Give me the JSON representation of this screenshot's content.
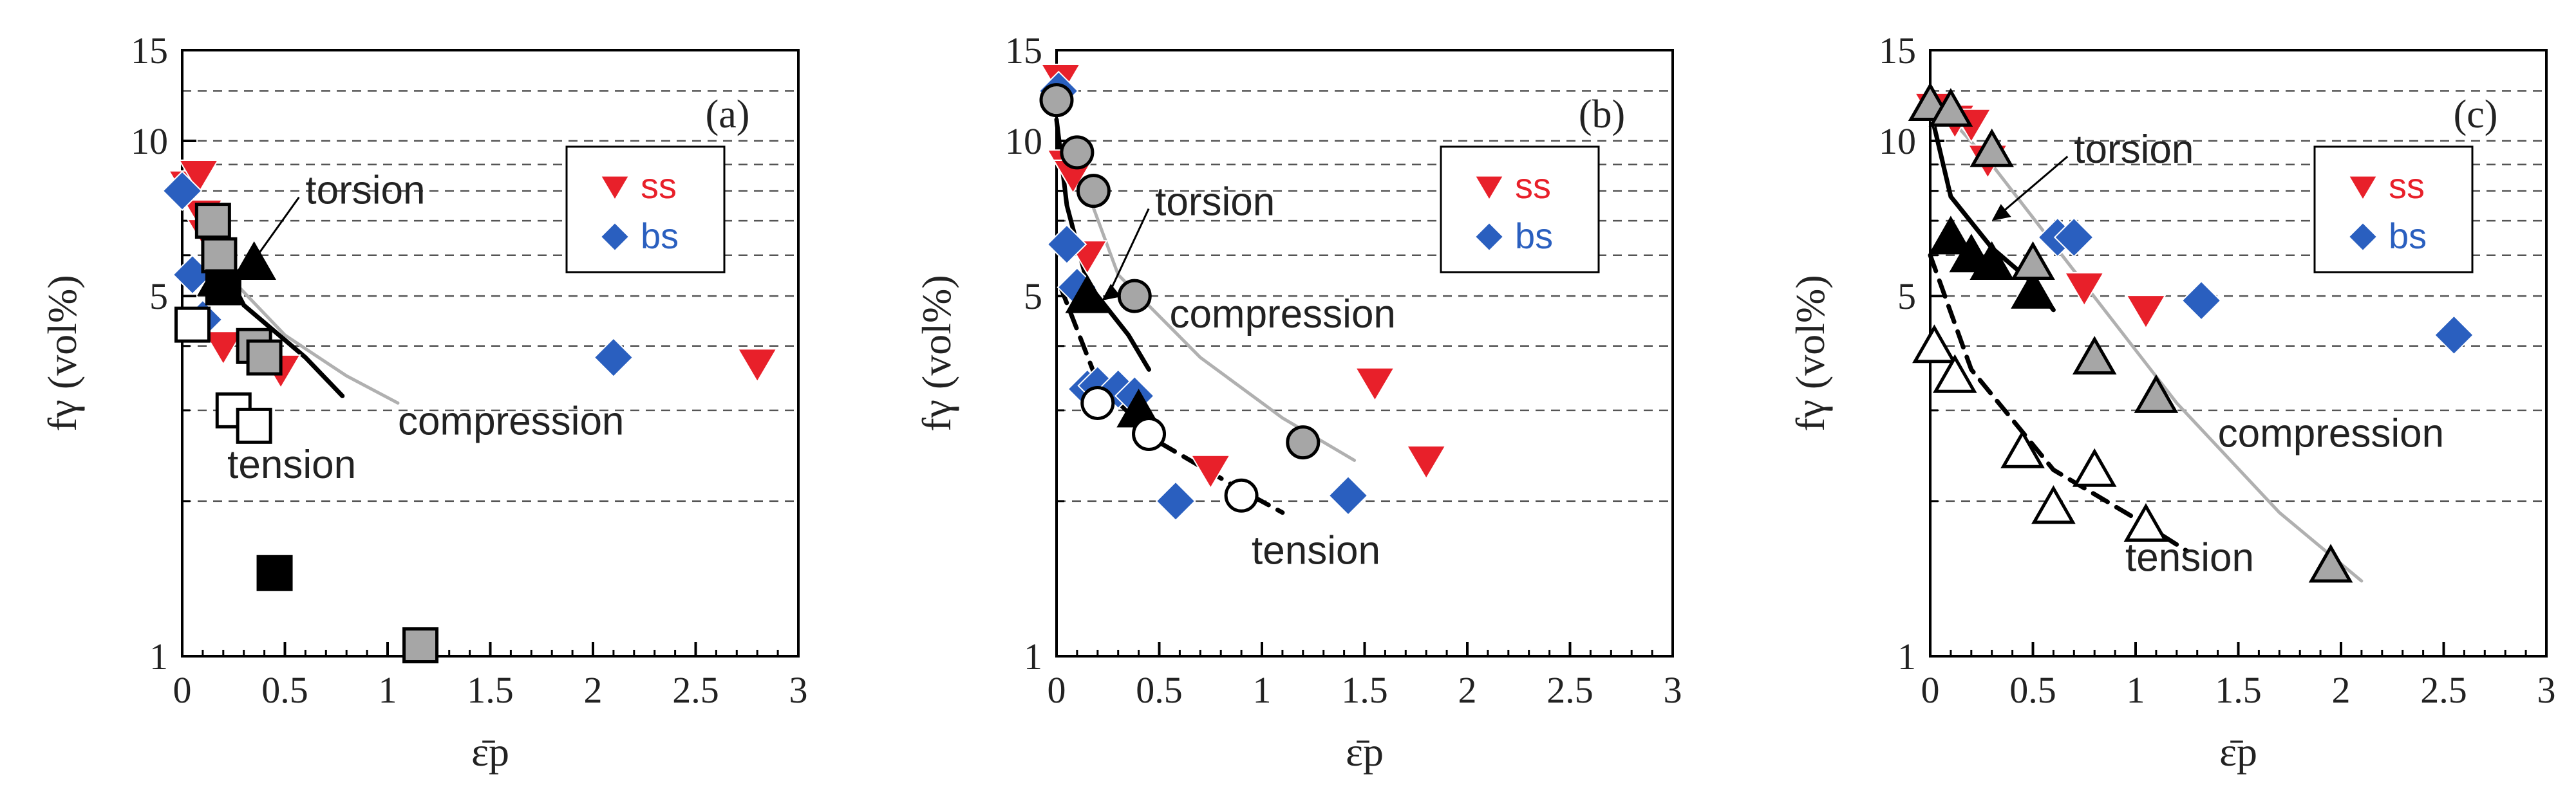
{
  "colors": {
    "ss": "#e8202a",
    "bs": "#2a5fbf",
    "gray_fill": "#a6a6a6",
    "black": "#000000",
    "fit_gray": "#b0b0b0",
    "grid": "#555555"
  },
  "chart_data": [
    {
      "type": "scatter",
      "panel": "(a)",
      "xlabel": "ε̄p",
      "ylabel": "fγ (vol%)",
      "xlim": [
        0,
        3
      ],
      "ylim": [
        1,
        15
      ],
      "yscale": "log",
      "xticks": [
        "0",
        "0.5",
        "1",
        "1.5",
        "2",
        "2.5",
        "3"
      ],
      "yticks": [
        "1",
        "5",
        "10",
        "15"
      ],
      "legend": [
        {
          "label": "ss",
          "marker": "tri-down",
          "color": "ss"
        },
        {
          "label": "bs",
          "marker": "diamond",
          "color": "bs"
        }
      ],
      "legend_position": "top-right",
      "series": [
        {
          "name": "ss",
          "marker": "tri-down",
          "color": "ss",
          "points": [
            [
              0.03,
              8.2
            ],
            [
              0.08,
              8.6
            ],
            [
              0.1,
              7.2
            ],
            [
              0.12,
              6.6
            ],
            [
              0.2,
              4.0
            ],
            [
              0.48,
              3.6
            ],
            [
              2.8,
              3.7
            ]
          ]
        },
        {
          "name": "bs",
          "marker": "diamond",
          "color": "bs",
          "points": [
            [
              0.0,
              8.0
            ],
            [
              0.05,
              5.5
            ],
            [
              0.1,
              4.5
            ],
            [
              2.1,
              3.8
            ]
          ]
        },
        {
          "name": "torsion",
          "marker": "tri-up",
          "fill": "black",
          "points": [
            [
              0.18,
              5.4
            ],
            [
              0.35,
              5.8
            ]
          ]
        },
        {
          "name": "compression",
          "marker": "square",
          "fill": "gray_fill",
          "points": [
            [
              0.15,
              7.0
            ],
            [
              0.18,
              6.0
            ],
            [
              0.35,
              4.0
            ],
            [
              0.4,
              3.8
            ],
            [
              1.16,
              1.05
            ]
          ]
        },
        {
          "name": "tension",
          "marker": "square",
          "fill": "none",
          "points": [
            [
              0.05,
              4.4
            ],
            [
              0.25,
              3.0
            ],
            [
              0.35,
              2.8
            ]
          ]
        },
        {
          "name": "black-square",
          "marker": "square",
          "fill": "black",
          "points": [
            [
              0.2,
              5.2
            ],
            [
              0.45,
              1.45
            ]
          ]
        }
      ],
      "fits": [
        {
          "name": "torsion",
          "style": "solid",
          "color": "black",
          "points": [
            [
              0.05,
              7.5
            ],
            [
              0.3,
              4.8
            ],
            [
              0.6,
              3.8
            ],
            [
              0.78,
              3.2
            ]
          ]
        },
        {
          "name": "compression",
          "style": "solid",
          "color": "fit_gray",
          "points": [
            [
              0.2,
              5.6
            ],
            [
              0.5,
              4.2
            ],
            [
              0.8,
              3.5
            ],
            [
              1.05,
              3.1
            ]
          ]
        }
      ],
      "annotations": [
        {
          "text": "torsion",
          "x": 0.6,
          "y": 8.0,
          "arrow_to": [
            0.3,
            5.6
          ]
        },
        {
          "text": "compression",
          "x": 1.05,
          "y": 2.85
        },
        {
          "text": "tension",
          "x": 0.22,
          "y": 2.35
        }
      ]
    },
    {
      "type": "scatter",
      "panel": "(b)",
      "xlabel": "ε̄p",
      "ylabel": "fγ (vol%)",
      "xlim": [
        0,
        3
      ],
      "ylim": [
        1,
        15
      ],
      "yscale": "log",
      "xticks": [
        "0",
        "0.5",
        "1",
        "1.5",
        "2",
        "2.5",
        "3"
      ],
      "yticks": [
        "1",
        "5",
        "10",
        "15"
      ],
      "legend": [
        {
          "label": "ss",
          "marker": "tri-down",
          "color": "ss"
        },
        {
          "label": "bs",
          "marker": "diamond",
          "color": "bs"
        }
      ],
      "legend_position": "top-right",
      "series": [
        {
          "name": "ss",
          "marker": "tri-down",
          "color": "ss",
          "points": [
            [
              0.02,
              13.2
            ],
            [
              0.05,
              9.0
            ],
            [
              0.08,
              8.6
            ],
            [
              0.15,
              6.0
            ],
            [
              0.75,
              2.3
            ],
            [
              1.55,
              3.4
            ],
            [
              1.8,
              2.4
            ]
          ]
        },
        {
          "name": "bs",
          "marker": "diamond",
          "color": "bs",
          "points": [
            [
              0.01,
              12.5
            ],
            [
              0.05,
              6.3
            ],
            [
              0.1,
              5.2
            ],
            [
              0.15,
              3.3
            ],
            [
              0.2,
              3.35
            ],
            [
              0.3,
              3.3
            ],
            [
              0.38,
              3.2
            ],
            [
              0.58,
              2.0
            ],
            [
              1.42,
              2.05
            ]
          ]
        },
        {
          "name": "torsion",
          "marker": "tri-up",
          "fill": "black",
          "points": [
            [
              0.15,
              5.0
            ],
            [
              0.4,
              3.0
            ]
          ]
        },
        {
          "name": "compression",
          "marker": "circle",
          "fill": "gray_fill",
          "points": [
            [
              0.0,
              12.0
            ],
            [
              0.1,
              9.5
            ],
            [
              0.18,
              8.0
            ],
            [
              0.38,
              5.0
            ],
            [
              1.2,
              2.6
            ]
          ]
        },
        {
          "name": "tension",
          "marker": "circle",
          "fill": "none",
          "points": [
            [
              0.2,
              3.1
            ],
            [
              0.45,
              2.7
            ],
            [
              0.9,
              2.05
            ]
          ]
        }
      ],
      "fits": [
        {
          "name": "torsion",
          "style": "solid",
          "color": "black",
          "points": [
            [
              0.0,
              11.0
            ],
            [
              0.05,
              7.5
            ],
            [
              0.15,
              5.3
            ],
            [
              0.35,
              4.2
            ],
            [
              0.45,
              3.6
            ]
          ]
        },
        {
          "name": "tension",
          "style": "dashed",
          "color": "black",
          "points": [
            [
              0.02,
              5.2
            ],
            [
              0.2,
              3.4
            ],
            [
              0.5,
              2.6
            ],
            [
              0.9,
              2.1
            ],
            [
              1.1,
              1.9
            ]
          ]
        },
        {
          "name": "compression",
          "style": "solid",
          "color": "fit_gray",
          "points": [
            [
              0.08,
              9.5
            ],
            [
              0.3,
              5.5
            ],
            [
              0.7,
              3.8
            ],
            [
              1.1,
              2.9
            ],
            [
              1.45,
              2.4
            ]
          ]
        }
      ],
      "annotations": [
        {
          "text": "torsion",
          "x": 0.48,
          "y": 7.6,
          "arrow_to": [
            0.22,
            4.9
          ]
        },
        {
          "text": "compression",
          "x": 0.55,
          "y": 4.6
        },
        {
          "text": "tension",
          "x": 0.95,
          "y": 1.6
        }
      ]
    },
    {
      "type": "scatter",
      "panel": "(c)",
      "xlabel": "ε̄p",
      "ylabel": "fγ (vol%)",
      "xlim": [
        0,
        3
      ],
      "ylim": [
        1,
        15
      ],
      "yscale": "log",
      "xticks": [
        "0",
        "0.5",
        "1",
        "1.5",
        "2",
        "2.5",
        "3"
      ],
      "yticks": [
        "1",
        "5",
        "10",
        "15"
      ],
      "legend": [
        {
          "label": "ss",
          "marker": "tri-down",
          "color": "ss"
        },
        {
          "label": "bs",
          "marker": "diamond",
          "color": "bs"
        }
      ],
      "legend_position": "top-right",
      "series": [
        {
          "name": "ss",
          "marker": "tri-down",
          "color": "ss",
          "points": [
            [
              0.02,
              11.6
            ],
            [
              0.12,
              11.0
            ],
            [
              0.2,
              10.8
            ],
            [
              0.28,
              9.2
            ],
            [
              0.75,
              5.2
            ],
            [
              1.05,
              4.7
            ]
          ]
        },
        {
          "name": "bs",
          "marker": "diamond",
          "color": "bs",
          "points": [
            [
              0.62,
              6.5
            ],
            [
              0.7,
              6.5
            ],
            [
              1.32,
              4.9
            ],
            [
              2.55,
              4.2
            ]
          ]
        },
        {
          "name": "torsion",
          "marker": "tri-up",
          "fill": "black",
          "points": [
            [
              0.1,
              6.5
            ],
            [
              0.2,
              6.0
            ],
            [
              0.3,
              5.8
            ],
            [
              0.5,
              5.1
            ]
          ]
        },
        {
          "name": "compression",
          "marker": "tri-up",
          "fill": "gray_fill",
          "points": [
            [
              0.0,
              11.8
            ],
            [
              0.1,
              11.5
            ],
            [
              0.3,
              9.6
            ],
            [
              0.5,
              5.8
            ],
            [
              0.8,
              3.8
            ],
            [
              1.1,
              3.2
            ],
            [
              1.95,
              1.5
            ]
          ]
        },
        {
          "name": "tension",
          "marker": "tri-up",
          "fill": "none",
          "points": [
            [
              0.02,
              4.0
            ],
            [
              0.12,
              3.5
            ],
            [
              0.45,
              2.5
            ],
            [
              0.6,
              1.95
            ],
            [
              0.8,
              2.3
            ],
            [
              1.05,
              1.8
            ]
          ]
        }
      ],
      "fits": [
        {
          "name": "torsion",
          "style": "solid",
          "color": "black",
          "points": [
            [
              0.0,
              11.5
            ],
            [
              0.1,
              7.8
            ],
            [
              0.3,
              6.2
            ],
            [
              0.5,
              5.3
            ],
            [
              0.6,
              4.7
            ]
          ]
        },
        {
          "name": "tension",
          "style": "dashed",
          "color": "black",
          "points": [
            [
              0.0,
              6.0
            ],
            [
              0.2,
              3.6
            ],
            [
              0.6,
              2.3
            ],
            [
              1.0,
              1.85
            ],
            [
              1.25,
              1.6
            ]
          ]
        },
        {
          "name": "compression",
          "style": "solid",
          "color": "fit_gray",
          "points": [
            [
              0.0,
              12.2
            ],
            [
              0.3,
              9.0
            ],
            [
              0.7,
              5.6
            ],
            [
              1.2,
              3.1
            ],
            [
              1.7,
              1.9
            ],
            [
              2.1,
              1.4
            ]
          ]
        }
      ],
      "annotations": [
        {
          "text": "torsion",
          "x": 0.7,
          "y": 9.6,
          "arrow_to": [
            0.3,
            7.0
          ]
        },
        {
          "text": "compression",
          "x": 1.4,
          "y": 2.7
        },
        {
          "text": "tension",
          "x": 0.95,
          "y": 1.55
        }
      ]
    }
  ]
}
